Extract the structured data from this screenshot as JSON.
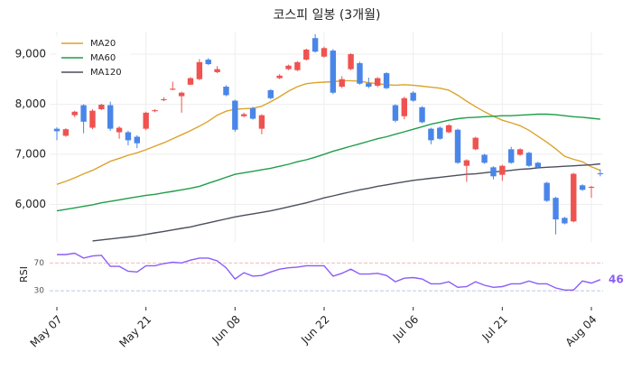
{
  "chart_data": {
    "type": "candlestick",
    "title": "코스피 일봉 (3개월)",
    "categories": [
      "May 07",
      null,
      null,
      null,
      null,
      null,
      null,
      null,
      null,
      null,
      "May 21",
      null,
      null,
      null,
      null,
      null,
      null,
      null,
      null,
      null,
      "Jun 08",
      null,
      null,
      null,
      null,
      null,
      null,
      null,
      null,
      null,
      "Jun 22",
      null,
      null,
      null,
      null,
      null,
      null,
      null,
      null,
      null,
      "Jul 06",
      null,
      null,
      null,
      null,
      null,
      null,
      null,
      null,
      null,
      "Jul 21",
      null,
      null,
      null,
      null,
      null,
      null,
      null,
      null,
      null,
      "Aug 04",
      null
    ],
    "open": [
      7510,
      7370,
      7780,
      7980,
      7530,
      7900,
      7980,
      7440,
      7440,
      7350,
      7510,
      7860,
      8080,
      8290,
      8160,
      8390,
      8500,
      8890,
      8640,
      8350,
      8070,
      7760,
      7920,
      7510,
      8280,
      8520,
      8700,
      8680,
      8890,
      9320,
      8950,
      9070,
      8350,
      8700,
      8820,
      8420,
      8370,
      8620,
      7980,
      7760,
      8230,
      7940,
      7510,
      7530,
      7440,
      7490,
      6770,
      7100,
      6990,
      6740,
      6590,
      7100,
      6990,
      7030,
      6830,
      6430,
      6130,
      5730,
      5660,
      6380,
      6330,
      6620
    ],
    "high": [
      7540,
      7520,
      7870,
      8000,
      7900,
      8010,
      8050,
      7560,
      7470,
      7380,
      7850,
      7900,
      8140,
      8450,
      8250,
      8540,
      8900,
      8920,
      8760,
      8380,
      8090,
      7830,
      7950,
      7800,
      8300,
      8600,
      8790,
      8860,
      9110,
      9400,
      9150,
      9100,
      8560,
      9020,
      8850,
      8530,
      8540,
      8640,
      8000,
      8150,
      8260,
      7960,
      7530,
      7560,
      7600,
      7510,
      6900,
      7350,
      7010,
      6760,
      6790,
      7150,
      7120,
      7050,
      6850,
      6450,
      6150,
      5750,
      6630,
      6400,
      6370,
      6700
    ],
    "low": [
      7280,
      7350,
      7740,
      7420,
      7500,
      7880,
      7470,
      7310,
      7180,
      7120,
      7480,
      7840,
      8060,
      8280,
      7830,
      8380,
      8480,
      8780,
      8620,
      8160,
      7450,
      7740,
      7690,
      7400,
      8100,
      8500,
      8680,
      8660,
      8870,
      9030,
      8930,
      8200,
      8320,
      8680,
      8390,
      8320,
      8340,
      8300,
      7640,
      7700,
      8050,
      7620,
      7200,
      7290,
      7420,
      6810,
      6450,
      7080,
      6810,
      6500,
      6470,
      6810,
      6970,
      6750,
      6720,
      6050,
      5400,
      5600,
      5640,
      6270,
      6130,
      6560
    ],
    "close": [
      7460,
      7500,
      7850,
      7650,
      7870,
      7990,
      7510,
      7530,
      7280,
      7220,
      7830,
      7880,
      8100,
      8310,
      8230,
      8520,
      8840,
      8800,
      8700,
      8180,
      7490,
      7800,
      7710,
      7780,
      8120,
      8570,
      8770,
      8840,
      9090,
      9050,
      9120,
      8230,
      8500,
      9000,
      8410,
      8350,
      8520,
      8320,
      7670,
      8120,
      8070,
      7640,
      7280,
      7310,
      7580,
      6830,
      6880,
      7330,
      6830,
      6560,
      6770,
      6830,
      7100,
      6770,
      6740,
      6070,
      5700,
      5620,
      6610,
      6290,
      6350,
      6610
    ],
    "up_color": "#ef5350",
    "down_color": "#4a86e8",
    "series": [
      {
        "name": "MA20",
        "color": "#dca32c",
        "values": [
          6400,
          6460,
          6530,
          6610,
          6680,
          6770,
          6860,
          6920,
          6980,
          7030,
          7090,
          7160,
          7230,
          7310,
          7390,
          7470,
          7560,
          7660,
          7780,
          7860,
          7900,
          7910,
          7920,
          7960,
          8050,
          8150,
          8260,
          8350,
          8410,
          8430,
          8440,
          8450,
          8470,
          8470,
          8460,
          8430,
          8410,
          8390,
          8380,
          8390,
          8380,
          8360,
          8340,
          8320,
          8280,
          8180,
          8060,
          7950,
          7850,
          7760,
          7680,
          7630,
          7570,
          7480,
          7360,
          7240,
          7110,
          6960,
          6900,
          6850,
          6750,
          6680
        ]
      },
      {
        "name": "MA60",
        "color": "#1e9e4a",
        "values": [
          5870,
          5900,
          5930,
          5960,
          5990,
          6030,
          6060,
          6090,
          6120,
          6150,
          6180,
          6200,
          6230,
          6260,
          6290,
          6320,
          6360,
          6420,
          6480,
          6540,
          6600,
          6630,
          6660,
          6690,
          6720,
          6760,
          6800,
          6850,
          6890,
          6940,
          7000,
          7060,
          7110,
          7160,
          7210,
          7260,
          7310,
          7350,
          7400,
          7450,
          7500,
          7550,
          7600,
          7640,
          7680,
          7710,
          7730,
          7740,
          7750,
          7760,
          7770,
          7770,
          7780,
          7790,
          7800,
          7800,
          7790,
          7770,
          7750,
          7740,
          7720,
          7700
        ]
      },
      {
        "name": "MA120",
        "color": "#4a4f5a",
        "values": [
          null,
          null,
          null,
          null,
          5270,
          5290,
          5310,
          5330,
          5350,
          5370,
          5400,
          5430,
          5460,
          5490,
          5520,
          5550,
          5590,
          5630,
          5670,
          5710,
          5750,
          5780,
          5810,
          5840,
          5870,
          5910,
          5950,
          5990,
          6030,
          6080,
          6130,
          6170,
          6210,
          6250,
          6290,
          6320,
          6360,
          6390,
          6420,
          6450,
          6480,
          6500,
          6520,
          6540,
          6560,
          6580,
          6600,
          6610,
          6630,
          6650,
          6660,
          6680,
          6700,
          6710,
          6730,
          6740,
          6750,
          6760,
          6770,
          6780,
          6790,
          6810
        ]
      }
    ],
    "ylim": [
      5250,
      9450
    ],
    "yticks": [
      {
        "value": 6000,
        "label": "6,000"
      },
      {
        "value": 7000,
        "label": "7,000"
      },
      {
        "value": 8000,
        "label": "8,000"
      },
      {
        "value": 9000,
        "label": "9,000"
      }
    ],
    "grid": true,
    "legend": "upper-left",
    "rsi": {
      "label": "RSI",
      "color": "#8b5cf6",
      "values": [
        82,
        82,
        84,
        77,
        80,
        81,
        65,
        65,
        58,
        57,
        66,
        66,
        69,
        71,
        70,
        74,
        77,
        77,
        73,
        63,
        47,
        56,
        51,
        52,
        57,
        61,
        63,
        64,
        66,
        66,
        66,
        51,
        55,
        61,
        54,
        54,
        55,
        52,
        43,
        48,
        49,
        47,
        40,
        40,
        43,
        35,
        36,
        43,
        38,
        35,
        36,
        40,
        40,
        44,
        40,
        40,
        34,
        31,
        31,
        44,
        41,
        46
      ],
      "ylim": [
        12,
        95
      ],
      "yticks": [
        70,
        30
      ],
      "tick_colors": [
        "#f0a0a0",
        "#9db8e0"
      ]
    }
  }
}
